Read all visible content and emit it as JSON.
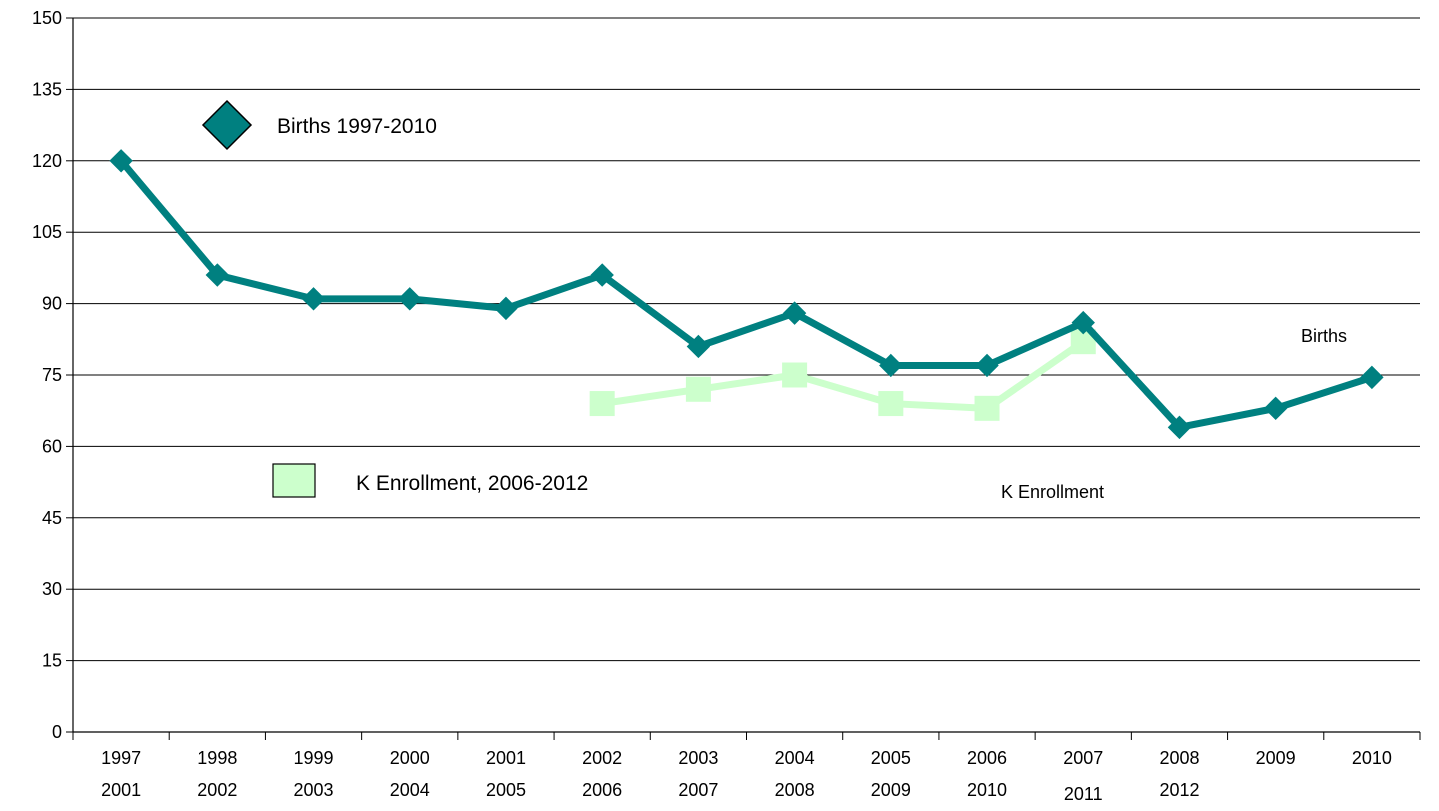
{
  "chart_data": {
    "type": "line",
    "title": "",
    "xlabel": "",
    "ylabel": "",
    "ylim": [
      0,
      150
    ],
    "yticks": [
      0,
      15,
      30,
      45,
      60,
      75,
      90,
      105,
      120,
      135,
      150
    ],
    "grid": true,
    "categories": [
      [
        "1997",
        "2001"
      ],
      [
        "1998",
        "2002"
      ],
      [
        "1999",
        "2003"
      ],
      [
        "2000",
        "2004"
      ],
      [
        "2001",
        "2005"
      ],
      [
        "2002",
        "2006"
      ],
      [
        "2003",
        "2007"
      ],
      [
        "2004",
        "2008"
      ],
      [
        "2005",
        "2009"
      ],
      [
        "2006",
        "2010"
      ],
      [
        "2007",
        "2011"
      ],
      [
        "2008",
        "2012"
      ],
      [
        "2009",
        ""
      ],
      [
        "2010",
        ""
      ]
    ],
    "series": [
      {
        "name": "Births 1997-2010",
        "label": "Births",
        "color": "#008080",
        "marker": "diamond",
        "values": [
          120,
          96,
          91,
          91,
          89,
          96,
          81,
          88,
          77,
          77,
          86,
          64,
          68,
          74.5
        ]
      },
      {
        "name": "K Enrollment, 2006-2012",
        "label": "K Enrollment",
        "color": "#ccffcc",
        "marker": "square",
        "values": [
          null,
          null,
          null,
          null,
          null,
          69,
          72,
          75,
          69,
          68,
          82,
          null,
          null,
          null
        ]
      }
    ],
    "legend": [
      {
        "text": "Births 1997-2010",
        "series": 0
      },
      {
        "text": "K Enrollment, 2006-2012",
        "series": 1
      }
    ]
  }
}
